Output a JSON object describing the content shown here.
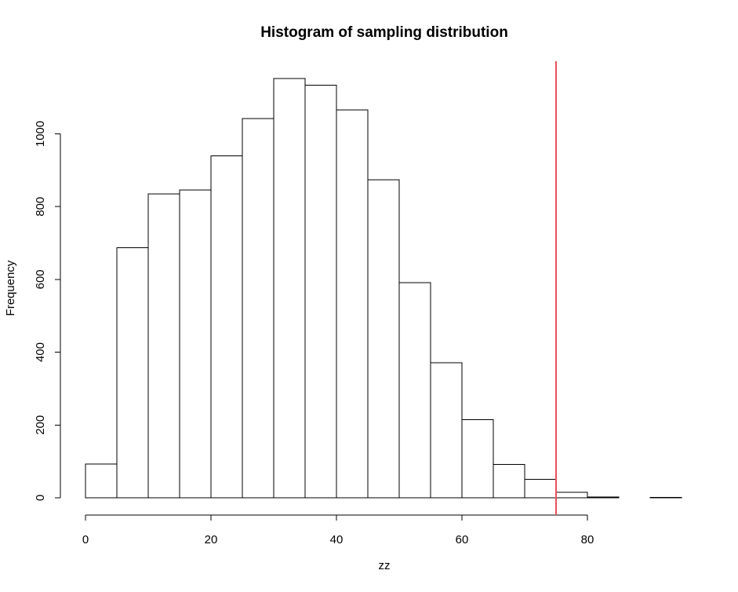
{
  "chart_data": {
    "type": "bar",
    "title": "Histogram of sampling distribution",
    "xlabel": "zz",
    "ylabel": "Frequency",
    "bin_width": 5,
    "bins": [
      {
        "x0": 0,
        "x1": 5,
        "count": 93
      },
      {
        "x0": 5,
        "x1": 10,
        "count": 687
      },
      {
        "x0": 10,
        "x1": 15,
        "count": 835
      },
      {
        "x0": 15,
        "x1": 20,
        "count": 846
      },
      {
        "x0": 20,
        "x1": 25,
        "count": 939
      },
      {
        "x0": 25,
        "x1": 30,
        "count": 1042
      },
      {
        "x0": 30,
        "x1": 35,
        "count": 1152
      },
      {
        "x0": 35,
        "x1": 40,
        "count": 1134
      },
      {
        "x0": 40,
        "x1": 45,
        "count": 1066
      },
      {
        "x0": 45,
        "x1": 50,
        "count": 874
      },
      {
        "x0": 50,
        "x1": 55,
        "count": 591
      },
      {
        "x0": 55,
        "x1": 60,
        "count": 371
      },
      {
        "x0": 60,
        "x1": 65,
        "count": 215
      },
      {
        "x0": 65,
        "x1": 70,
        "count": 92
      },
      {
        "x0": 70,
        "x1": 75,
        "count": 51
      },
      {
        "x0": 75,
        "x1": 80,
        "count": 15
      },
      {
        "x0": 80,
        "x1": 85,
        "count": 2
      },
      {
        "x0": 85,
        "x1": 90,
        "count": 0
      },
      {
        "x0": 90,
        "x1": 95,
        "count": 1
      }
    ],
    "xlim": [
      0,
      95
    ],
    "ylim": [
      0,
      1152
    ],
    "x_ticks": [
      0,
      20,
      40,
      60,
      80
    ],
    "y_ticks": [
      0,
      200,
      400,
      600,
      800,
      1000
    ],
    "x_tick_labels": [
      "0",
      "20",
      "40",
      "60",
      "80"
    ],
    "y_tick_labels": [
      "0",
      "200",
      "400",
      "600",
      "800",
      "1000"
    ],
    "grid": false,
    "reference_line": {
      "x": 75,
      "color": "#e8505b"
    },
    "bar_fill": "#ffffff",
    "bar_stroke": "#000000"
  }
}
